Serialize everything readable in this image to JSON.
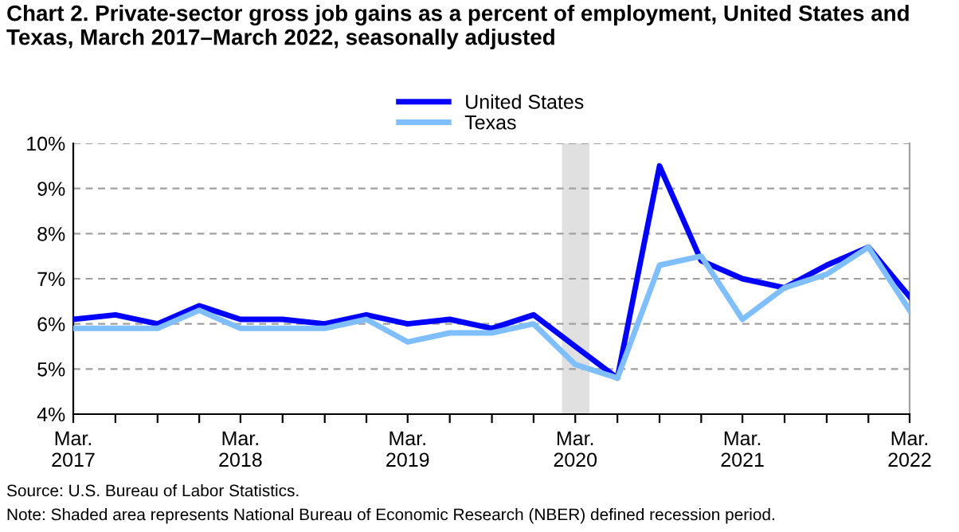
{
  "chart_data": {
    "type": "line",
    "title": "Chart 2. Private-sector gross job gains as a percent of employment, United States and Texas, March 2017–March 2022, seasonally adjusted",
    "x": [
      "2017-03",
      "2017-06",
      "2017-09",
      "2017-12",
      "2018-03",
      "2018-06",
      "2018-09",
      "2018-12",
      "2019-03",
      "2019-06",
      "2019-09",
      "2019-12",
      "2020-03",
      "2020-06",
      "2020-09",
      "2020-12",
      "2021-03",
      "2021-06",
      "2021-09",
      "2021-12",
      "2022-03"
    ],
    "series": [
      {
        "name": "United States",
        "color": "#0000ff",
        "values": [
          6.1,
          6.2,
          6.0,
          6.4,
          6.1,
          6.1,
          6.0,
          6.2,
          6.0,
          6.1,
          5.9,
          6.2,
          5.5,
          4.8,
          9.5,
          7.4,
          7.0,
          6.8,
          7.3,
          7.7,
          6.6
        ]
      },
      {
        "name": "Texas",
        "color": "#80bfff",
        "values": [
          5.9,
          5.9,
          5.9,
          6.3,
          5.9,
          5.9,
          5.9,
          6.1,
          5.6,
          5.8,
          5.8,
          6.0,
          5.1,
          4.8,
          7.3,
          7.5,
          6.1,
          6.8,
          7.1,
          7.7,
          6.3
        ]
      }
    ],
    "xlim": [
      "2017-03",
      "2022-03"
    ],
    "xticks": [
      {
        "value": "2017-03",
        "label": "Mar.\n2017"
      },
      {
        "value": "2017-06",
        "label": null
      },
      {
        "value": "2017-09",
        "label": null
      },
      {
        "value": "2017-12",
        "label": null
      },
      {
        "value": "2018-03",
        "label": "Mar.\n2018"
      },
      {
        "value": "2018-06",
        "label": null
      },
      {
        "value": "2018-09",
        "label": null
      },
      {
        "value": "2018-12",
        "label": null
      },
      {
        "value": "2019-03",
        "label": "Mar.\n2019"
      },
      {
        "value": "2019-06",
        "label": null
      },
      {
        "value": "2019-09",
        "label": null
      },
      {
        "value": "2019-12",
        "label": null
      },
      {
        "value": "2020-03",
        "label": "Mar.\n2020"
      },
      {
        "value": "2020-06",
        "label": null
      },
      {
        "value": "2020-09",
        "label": null
      },
      {
        "value": "2020-12",
        "label": null
      },
      {
        "value": "2021-03",
        "label": "Mar.\n2021"
      },
      {
        "value": "2021-06",
        "label": null
      },
      {
        "value": "2021-09",
        "label": null
      },
      {
        "value": "2021-12",
        "label": null
      },
      {
        "value": "2022-03",
        "label": "Mar.\n2022"
      }
    ],
    "ylim": [
      4,
      10
    ],
    "yticks": [
      {
        "value": 4,
        "label": "4%"
      },
      {
        "value": 5,
        "label": "5%"
      },
      {
        "value": 6,
        "label": "6%"
      },
      {
        "value": 7,
        "label": "7%"
      },
      {
        "value": 8,
        "label": "8%"
      },
      {
        "value": 9,
        "label": "9%"
      },
      {
        "value": 10,
        "label": "10%"
      }
    ],
    "bands": [
      {
        "axis": "x",
        "from": "2020-02",
        "to": "2020-04",
        "color": "#e0e0e0"
      }
    ],
    "grid": "y",
    "legend": "top",
    "line_style": "solid",
    "marker": "none",
    "annotations": [
      "Source: U.S. Bureau of Labor Statistics.",
      "Note: Shaded area represents National Bureau of Economic Research (NBER) defined recession period."
    ]
  }
}
